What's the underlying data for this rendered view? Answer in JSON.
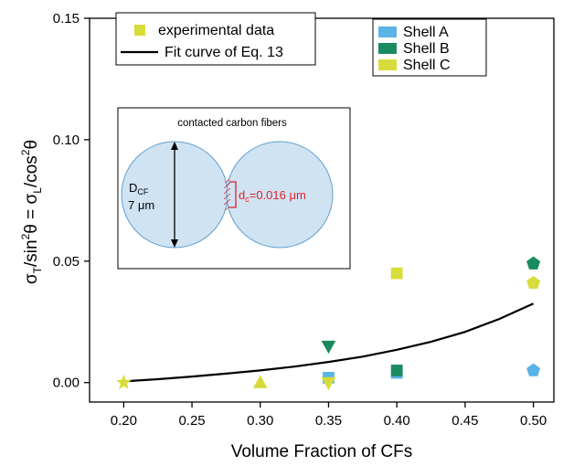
{
  "chart_data": {
    "type": "scatter",
    "title": "",
    "xlabel": "Volume Fraction of CFs",
    "ylabel_parts": {
      "sigma1": "σ",
      "sub1": "T",
      "mid1": "/sin",
      "sup1": "2",
      "mid2": "θ = σ",
      "sub2": "L",
      "mid3": "/cos",
      "sup2": "2",
      "end": "θ"
    },
    "xlim": [
      0.175,
      0.515
    ],
    "ylim": [
      -0.008,
      0.15
    ],
    "xticks": [
      0.2,
      0.25,
      0.3,
      0.35,
      0.4,
      0.45,
      0.5
    ],
    "xtick_labels": [
      "0.20",
      "0.25",
      "0.30",
      "0.35",
      "0.40",
      "0.45",
      "0.50"
    ],
    "yticks": [
      0.0,
      0.05,
      0.1,
      0.15
    ],
    "ytick_labels": [
      "0.00",
      "0.05",
      "0.10",
      "0.15"
    ],
    "colors": {
      "shell_a": "#5ab4e5",
      "shell_b": "#1a8a5f",
      "shell_c": "#d8dc3a",
      "fit": "#000000"
    },
    "series": [
      {
        "name": "Shell A",
        "color": "#5ab4e5",
        "points": [
          {
            "x": 0.35,
            "y": 0.002,
            "marker": "square"
          },
          {
            "x": 0.4,
            "y": 0.004,
            "marker": "square"
          },
          {
            "x": 0.5,
            "y": 0.005,
            "marker": "pentagon"
          }
        ]
      },
      {
        "name": "Shell B",
        "color": "#1a8a5f",
        "points": [
          {
            "x": 0.35,
            "y": 0.015,
            "marker": "triangle-down"
          },
          {
            "x": 0.4,
            "y": 0.005,
            "marker": "square"
          },
          {
            "x": 0.5,
            "y": 0.049,
            "marker": "pentagon"
          }
        ]
      },
      {
        "name": "Shell C",
        "color": "#d8dc3a",
        "points": [
          {
            "x": 0.2,
            "y": 0.0,
            "marker": "star"
          },
          {
            "x": 0.3,
            "y": 0.0,
            "marker": "triangle-up"
          },
          {
            "x": 0.35,
            "y": 0.0,
            "marker": "triangle-down"
          },
          {
            "x": 0.4,
            "y": 0.045,
            "marker": "square"
          },
          {
            "x": 0.5,
            "y": 0.041,
            "marker": "pentagon"
          }
        ]
      }
    ],
    "fit_curve": {
      "name": "Fit curve of Eq. 13",
      "x": [
        0.2,
        0.225,
        0.25,
        0.275,
        0.3,
        0.325,
        0.35,
        0.375,
        0.4,
        0.425,
        0.45,
        0.475,
        0.5
      ],
      "y": [
        0.0005,
        0.0014,
        0.0025,
        0.0037,
        0.005,
        0.0066,
        0.0085,
        0.0107,
        0.0135,
        0.0168,
        0.0209,
        0.0262,
        0.0325
      ]
    },
    "legend_left": {
      "placement": "top-left",
      "entries": [
        {
          "label": "experimental data",
          "kind": "marker",
          "color": "#d8dc3a"
        },
        {
          "label": "Fit curve of Eq. 13",
          "kind": "line",
          "color": "#000000"
        }
      ]
    },
    "legend_right": {
      "placement": "top-right",
      "entries": [
        {
          "label": "Shell A",
          "color": "#5ab4e5"
        },
        {
          "label": "Shell B",
          "color": "#1a8a5f"
        },
        {
          "label": "Shell C",
          "color": "#d8dc3a"
        }
      ]
    },
    "inset": {
      "title": "contacted carbon fibers",
      "diameter_label_main": "D",
      "diameter_label_sub": "CF",
      "diameter_value": "7 μm",
      "contact_label_main": "d",
      "contact_label_sub": "c",
      "contact_value": "=0.016 μm",
      "fiber_fill": "#cfe3f3",
      "contact_color": "#e0202a"
    }
  }
}
